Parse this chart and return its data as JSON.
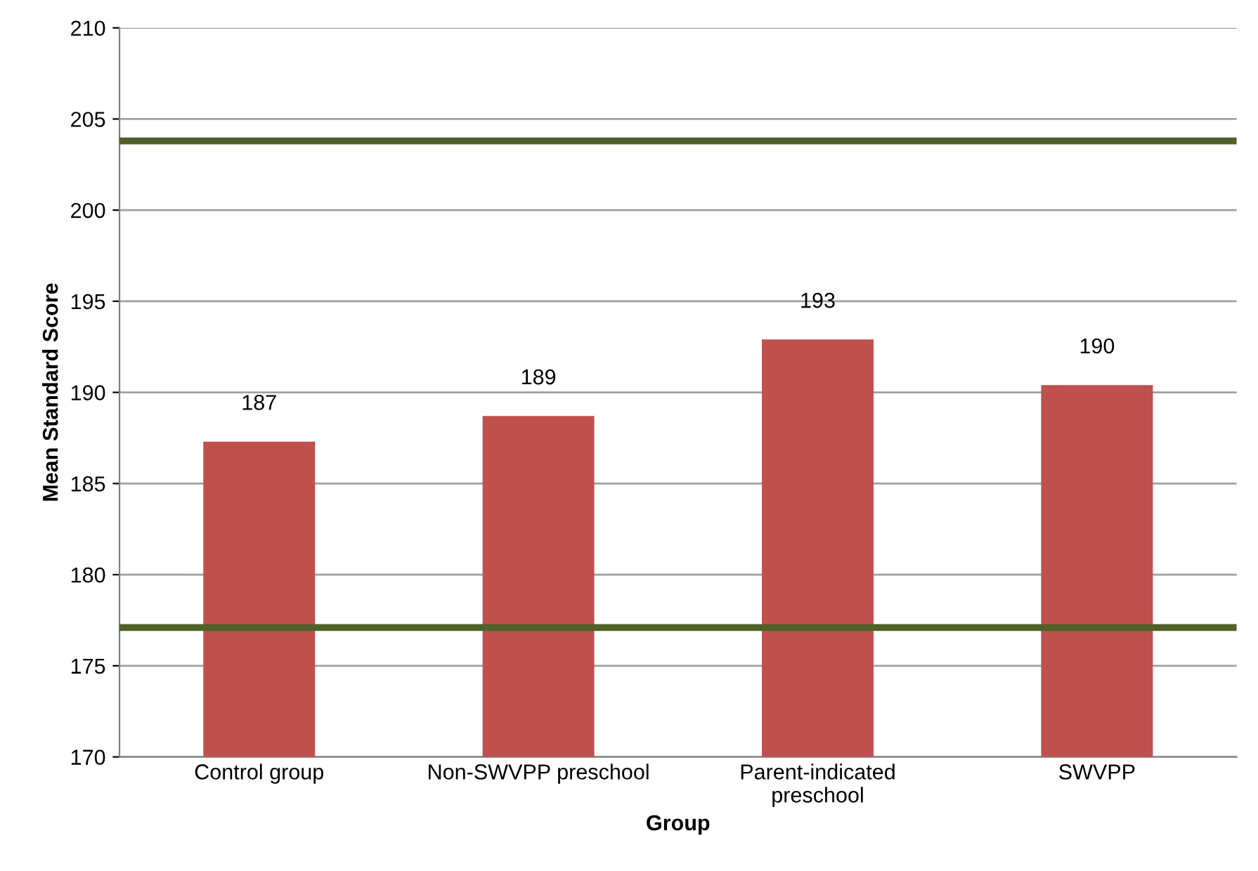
{
  "chart_data": {
    "type": "bar",
    "xlabel": "Group",
    "ylabel": "Mean Standard Score",
    "categories": [
      "Control group",
      "Non-SWVPP preschool",
      "Parent-indicated\npreschool",
      "SWVPP"
    ],
    "values": [
      187.3,
      188.7,
      192.9,
      190.4
    ],
    "value_labels": [
      "187",
      "189",
      "193",
      "190"
    ],
    "color": "#c0504d",
    "ylim": [
      170,
      210
    ],
    "yticks": [
      170,
      175,
      180,
      185,
      190,
      195,
      200,
      205,
      210
    ],
    "grid": "y",
    "ref_lines": [
      {
        "axis": "y",
        "value": 203.8,
        "color": "#4f6228"
      },
      {
        "axis": "y",
        "value": 177.1,
        "color": "#4f6228"
      }
    ]
  }
}
